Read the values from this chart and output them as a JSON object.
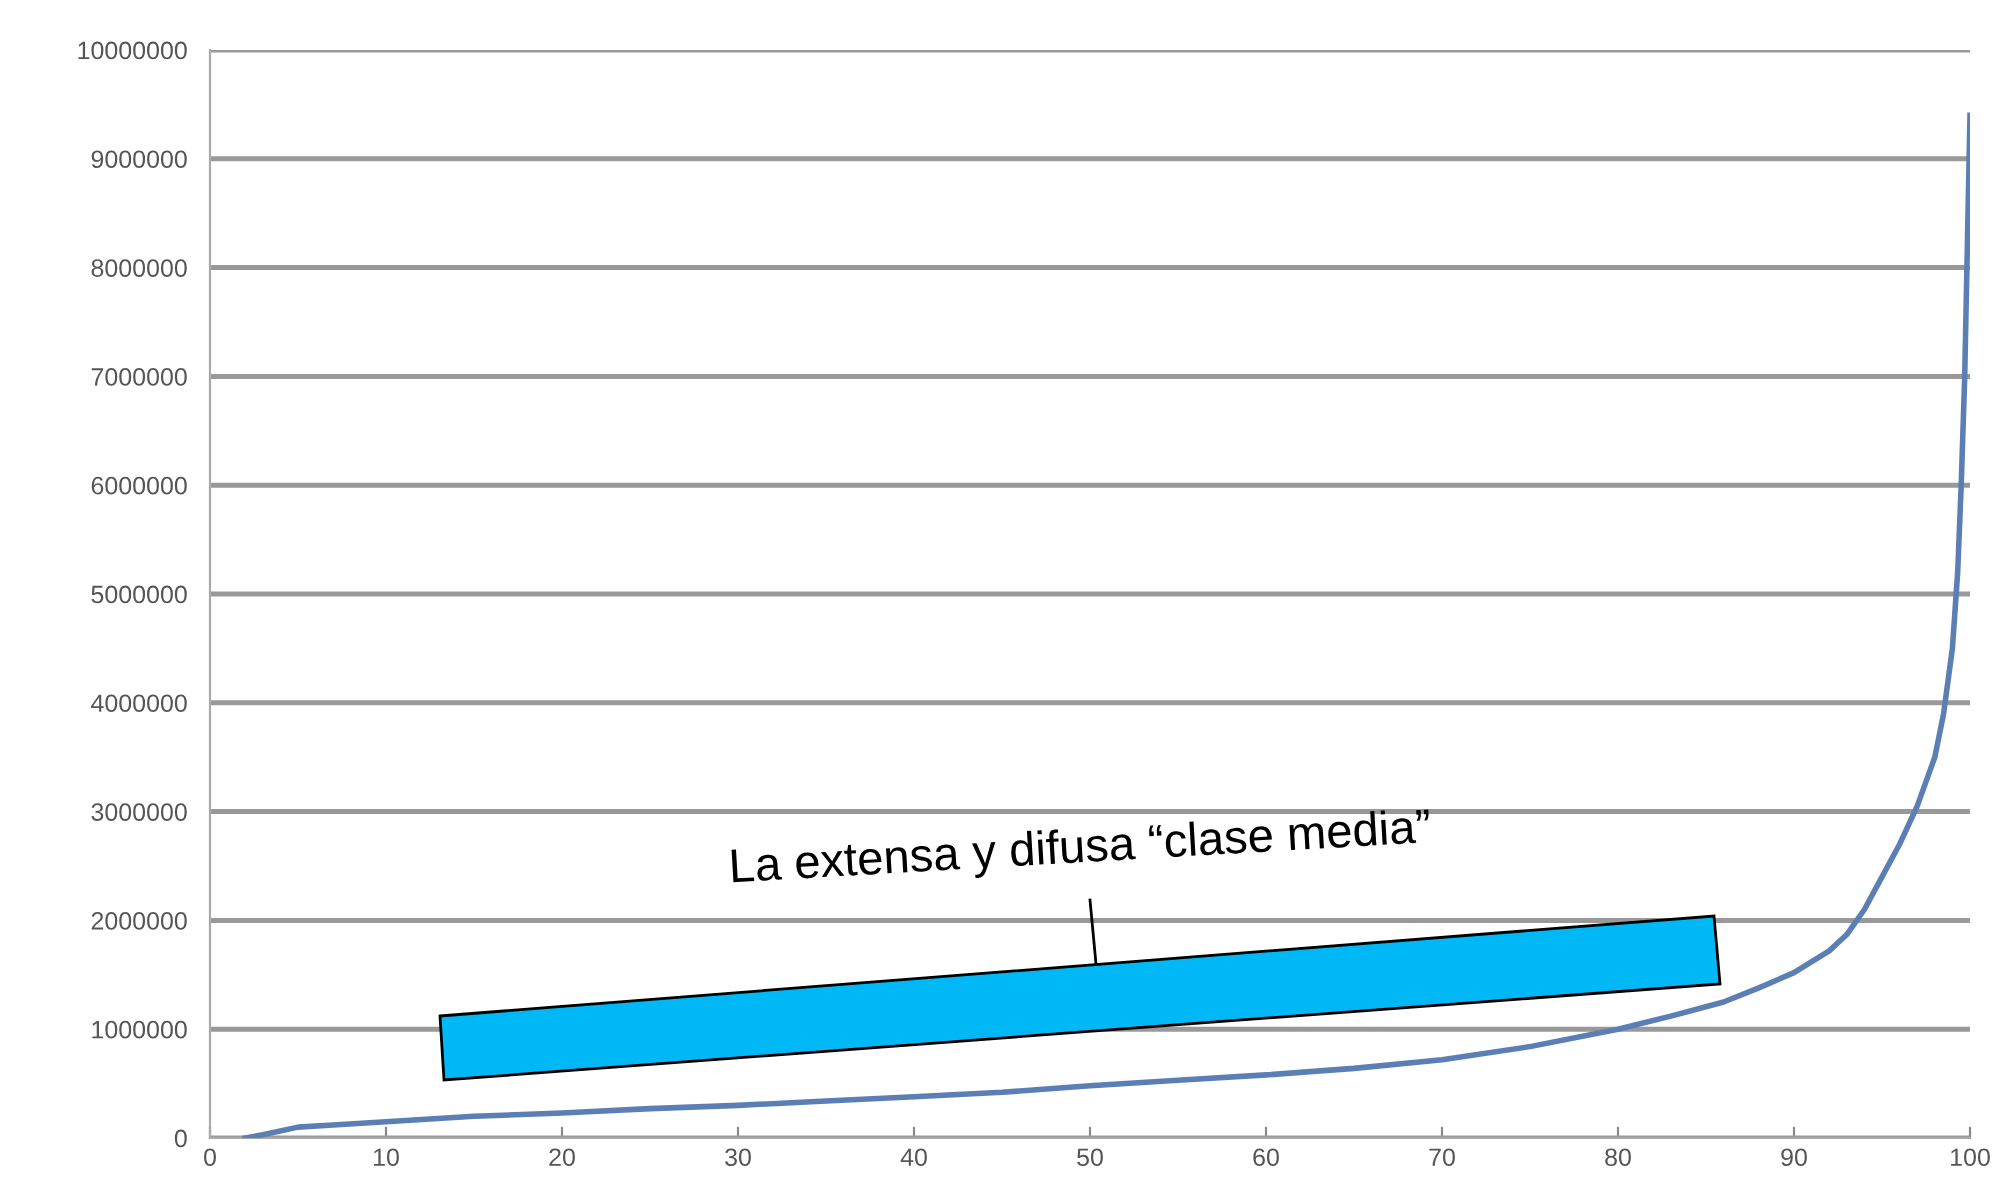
{
  "chart_data": {
    "type": "line",
    "x": [
      2,
      3,
      5,
      7,
      10,
      15,
      20,
      25,
      30,
      35,
      40,
      45,
      50,
      55,
      60,
      65,
      70,
      75,
      80,
      83,
      86,
      88,
      90,
      92,
      93,
      94,
      95,
      96,
      97,
      98,
      98.5,
      99,
      99.3,
      99.5,
      99.7,
      99.85,
      100
    ],
    "series": [
      {
        "color": "#5b7fb5",
        "values": [
          0,
          30000,
          100000,
          120000,
          150000,
          200000,
          230000,
          270000,
          300000,
          340000,
          380000,
          420000,
          480000,
          530000,
          580000,
          640000,
          720000,
          840000,
          1000000,
          1120000,
          1250000,
          1380000,
          1520000,
          1720000,
          1870000,
          2100000,
          2400000,
          2700000,
          3050000,
          3500000,
          3900000,
          4500000,
          5200000,
          6000000,
          7000000,
          8200000,
          9400000
        ]
      }
    ],
    "xlim": [
      0,
      100
    ],
    "xticks": [
      0,
      10,
      20,
      30,
      40,
      50,
      60,
      70,
      80,
      90,
      100
    ],
    "ylim": [
      0,
      10000000
    ],
    "yticks": [
      0,
      1000000,
      2000000,
      3000000,
      4000000,
      5000000,
      6000000,
      7000000,
      8000000,
      9000000,
      10000000
    ],
    "grid": "y",
    "marker": "none",
    "line_style": "solid",
    "annotations": [
      "La extensa y difusa “clase media”"
    ]
  }
}
